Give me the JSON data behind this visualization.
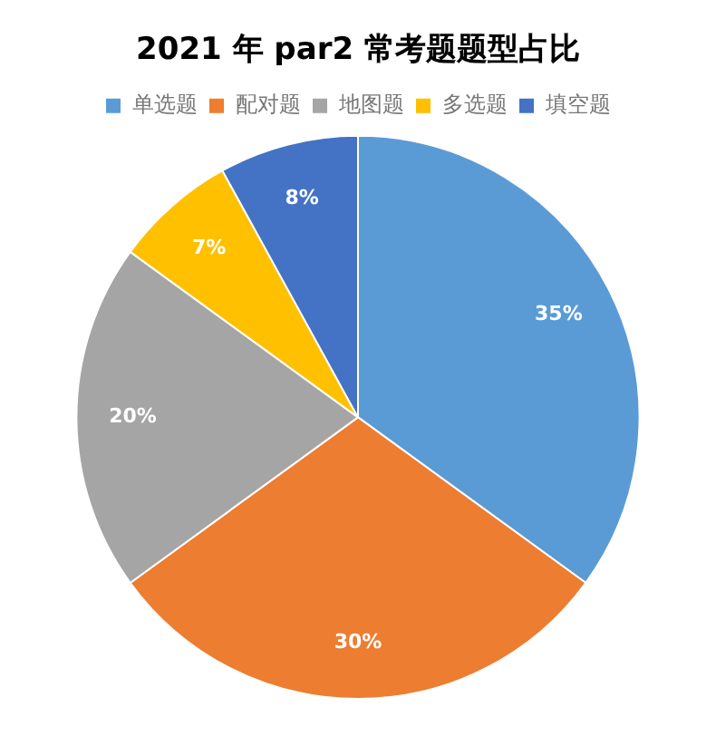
{
  "chart_data": {
    "type": "pie",
    "title": "2021 年 par2 常考题题型占比",
    "categories": [
      "单选题",
      "配对题",
      "地图题",
      "多选题",
      "填空题"
    ],
    "values": [
      35,
      30,
      20,
      7,
      8
    ],
    "colors": [
      "#5b9bd5",
      "#ed7d31",
      "#a5a5a5",
      "#ffc000",
      "#4472c4"
    ],
    "value_labels": [
      "35%",
      "30%",
      "20%",
      "7%",
      "8%"
    ],
    "legend": "top"
  }
}
